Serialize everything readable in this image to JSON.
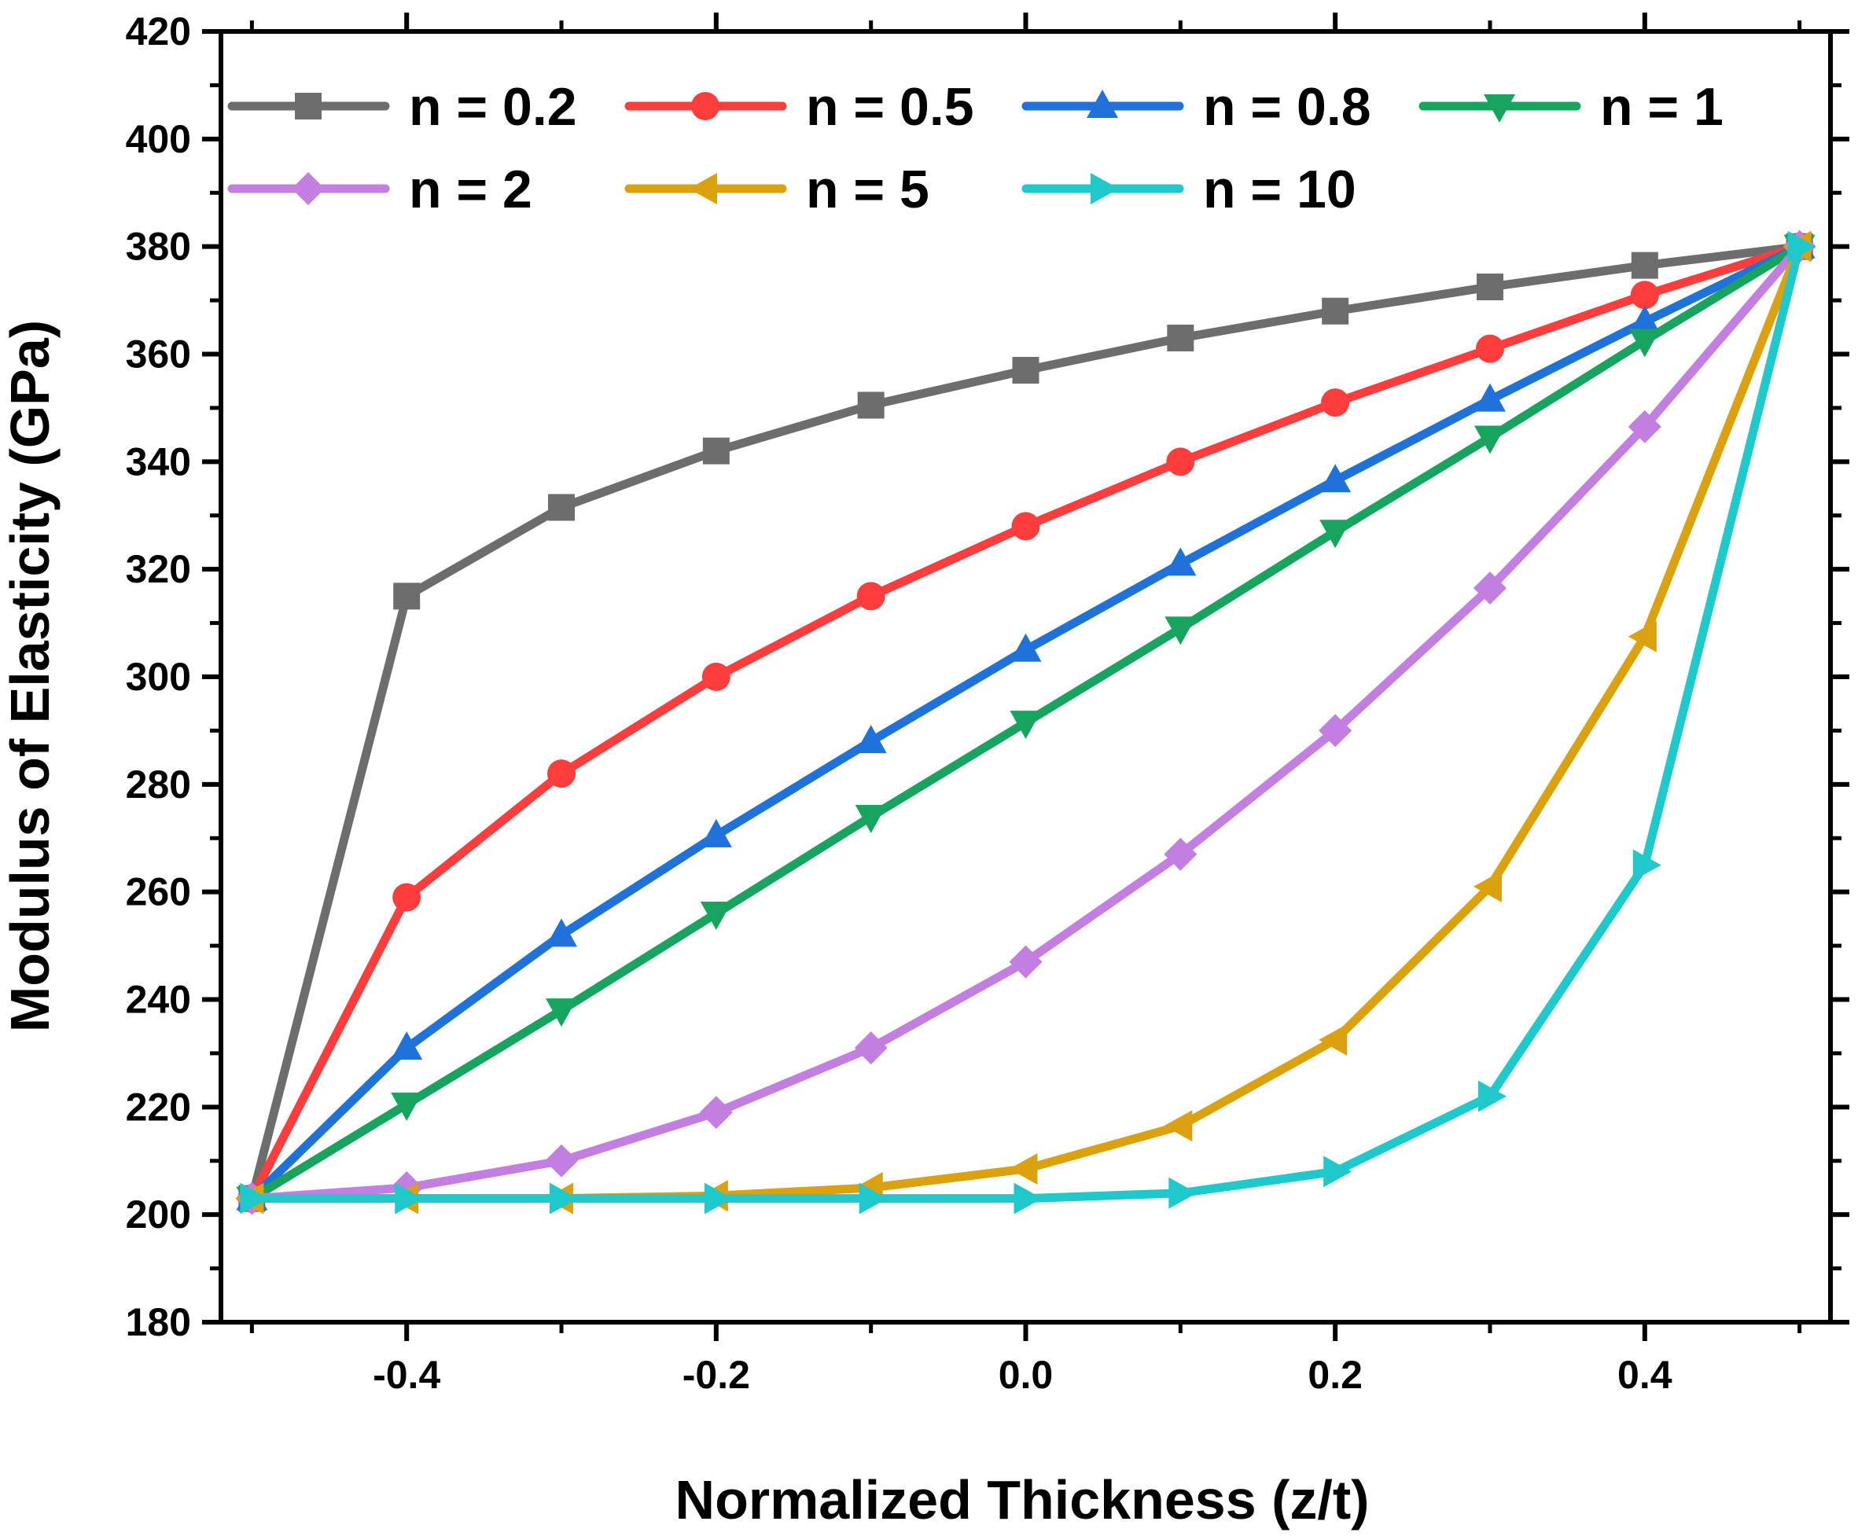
{
  "chart_data": {
    "type": "line",
    "title": "",
    "xlabel": "Normalized Thickness (z/t)",
    "ylabel": "Modulus of Elasticity (GPa)",
    "xlim": [
      -0.52,
      0.52
    ],
    "ylim": [
      180,
      420
    ],
    "x_ticks": [
      -0.4,
      -0.2,
      0.0,
      0.2,
      0.4
    ],
    "x_tick_labels": [
      "-0.4",
      "-0.2",
      "0.0",
      "0.2",
      "0.4"
    ],
    "y_ticks": [
      180,
      200,
      220,
      240,
      260,
      280,
      300,
      320,
      340,
      360,
      380,
      400,
      420
    ],
    "y_tick_labels": [
      "180",
      "200",
      "220",
      "240",
      "260",
      "280",
      "300",
      "320",
      "340",
      "360",
      "380",
      "400",
      "420"
    ],
    "grid": false,
    "legend_position": "top",
    "x": [
      -0.5,
      -0.4,
      -0.3,
      -0.2,
      -0.1,
      0.0,
      0.1,
      0.2,
      0.3,
      0.4,
      0.5
    ],
    "series": [
      {
        "name": "n = 0.2",
        "color": "#6d6d6d",
        "marker": "square",
        "values": [
          203,
          315,
          331.5,
          342,
          350.5,
          357,
          363,
          368,
          372.5,
          376.5,
          380
        ]
      },
      {
        "name": "n = 0.5",
        "color": "#ff3d3d",
        "marker": "circle",
        "values": [
          203,
          259,
          282,
          300,
          315,
          328,
          340,
          351,
          361,
          371,
          380
        ]
      },
      {
        "name": "n = 0.8",
        "color": "#1e72d9",
        "marker": "triangle-up",
        "values": [
          203,
          231,
          252,
          270.5,
          288,
          305,
          321,
          336.5,
          351.5,
          366,
          380
        ]
      },
      {
        "name": "n = 1",
        "color": "#17a45e",
        "marker": "triangle-down",
        "values": [
          203,
          220.5,
          238,
          256,
          274,
          291.5,
          309,
          327,
          344.5,
          362.5,
          380
        ]
      },
      {
        "name": "n = 2",
        "color": "#c27ee0",
        "marker": "diamond",
        "values": [
          203,
          205,
          210,
          219,
          231,
          247,
          267,
          290,
          316.5,
          346.5,
          380
        ]
      },
      {
        "name": "n = 5",
        "color": "#dba10f",
        "marker": "triangle-left",
        "values": [
          203,
          203,
          203,
          203.5,
          205,
          208.5,
          216.5,
          232.5,
          261,
          307.5,
          380
        ]
      },
      {
        "name": "n = 10",
        "color": "#1ec9cc",
        "marker": "triangle-right",
        "values": [
          203,
          203,
          203,
          203,
          203,
          203,
          204,
          208,
          222,
          265,
          380
        ]
      }
    ]
  }
}
